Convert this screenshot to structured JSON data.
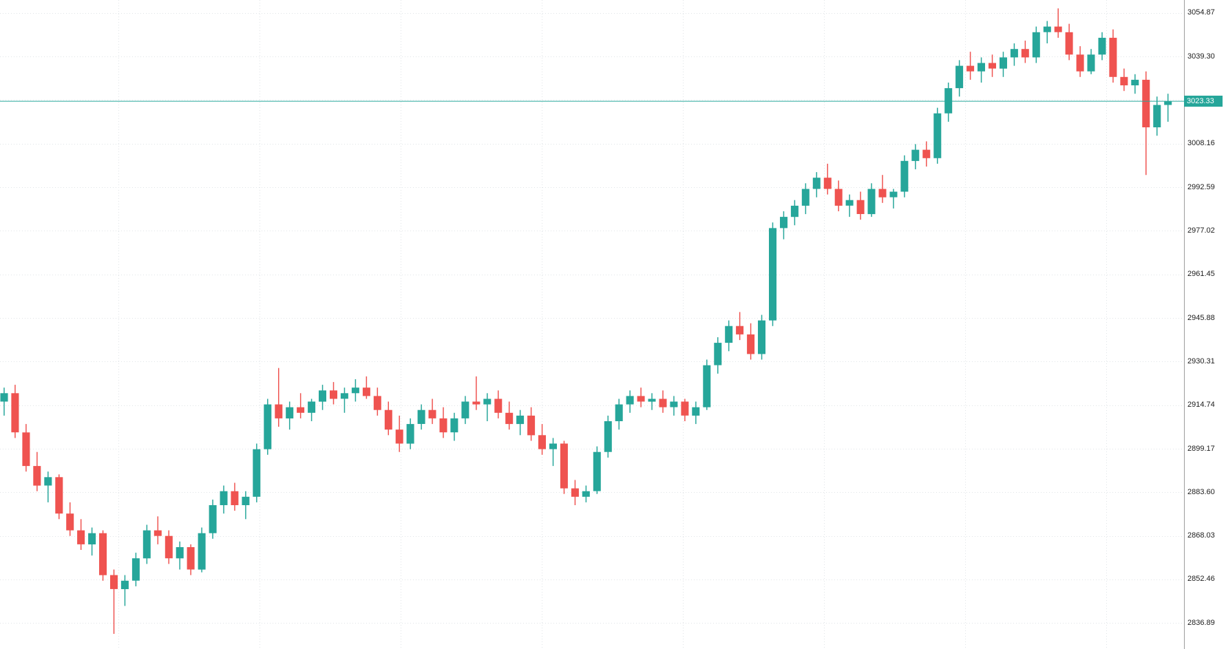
{
  "chart_data": {
    "type": "candlestick",
    "title": "",
    "current_price": 3023.33,
    "current_price_label": "3023.33",
    "y_axis": {
      "top": 3059.5,
      "bottom": 2827.6,
      "tick_step": 15.57
    },
    "axis_labels": [
      "3054.87",
      "3039.30",
      "3008.16",
      "2992.59",
      "2977.02",
      "2961.45",
      "2945.88",
      "2930.31",
      "2914.74",
      "2899.17",
      "2883.60",
      "2868.03",
      "2852.46",
      "2836.89"
    ],
    "grid_prices": [
      3054.87,
      3039.3,
      3023.73,
      3008.16,
      2992.59,
      2977.02,
      2961.45,
      2945.88,
      2930.31,
      2914.74,
      2899.17,
      2883.6,
      2868.03,
      2852.46,
      2836.89
    ],
    "colors": {
      "bull": "#26a69a",
      "bear": "#ef5350",
      "price_line": "#26a69a",
      "tag_bg": "#26a69a",
      "tag_text": "#ffffff",
      "grid": "#dfe3e6",
      "axis_text": "#1b1b1b",
      "axis_border": "#9b9b9b",
      "background": "#ffffff"
    },
    "candles": [
      [
        2916,
        2921,
        2911,
        2919
      ],
      [
        2919,
        2922,
        2903,
        2905
      ],
      [
        2905,
        2908,
        2891,
        2893
      ],
      [
        2893,
        2898,
        2884,
        2886
      ],
      [
        2886,
        2891,
        2880,
        2889
      ],
      [
        2889,
        2890,
        2874,
        2876
      ],
      [
        2876,
        2880,
        2868,
        2870
      ],
      [
        2870,
        2874,
        2863,
        2865
      ],
      [
        2865,
        2871,
        2861,
        2869
      ],
      [
        2869,
        2870,
        2852,
        2854
      ],
      [
        2854,
        2856,
        2833,
        2849
      ],
      [
        2849,
        2854,
        2843,
        2852
      ],
      [
        2852,
        2862,
        2850,
        2860
      ],
      [
        2860,
        2872,
        2858,
        2870
      ],
      [
        2870,
        2875,
        2865,
        2868
      ],
      [
        2868,
        2870,
        2858,
        2860
      ],
      [
        2860,
        2866,
        2856,
        2864
      ],
      [
        2864,
        2865,
        2854,
        2856
      ],
      [
        2856,
        2871,
        2855,
        2869
      ],
      [
        2869,
        2881,
        2867,
        2879
      ],
      [
        2879,
        2886,
        2876,
        2884
      ],
      [
        2884,
        2887,
        2877,
        2879
      ],
      [
        2879,
        2884,
        2874,
        2882
      ],
      [
        2882,
        2901,
        2880,
        2899
      ],
      [
        2899,
        2917,
        2897,
        2915
      ],
      [
        2915,
        2928,
        2907,
        2910
      ],
      [
        2910,
        2916,
        2906,
        2914
      ],
      [
        2914,
        2919,
        2910,
        2912
      ],
      [
        2912,
        2917,
        2909,
        2916
      ],
      [
        2916,
        2922,
        2913,
        2920
      ],
      [
        2920,
        2923,
        2915,
        2917
      ],
      [
        2917,
        2921,
        2912,
        2919
      ],
      [
        2919,
        2924,
        2916,
        2921
      ],
      [
        2921,
        2925,
        2917,
        2918
      ],
      [
        2918,
        2921,
        2911,
        2913
      ],
      [
        2913,
        2916,
        2904,
        2906
      ],
      [
        2906,
        2911,
        2898,
        2901
      ],
      [
        2901,
        2910,
        2899,
        2908
      ],
      [
        2908,
        2915,
        2906,
        2913
      ],
      [
        2913,
        2917,
        2908,
        2910
      ],
      [
        2910,
        2914,
        2903,
        2905
      ],
      [
        2905,
        2912,
        2902,
        2910
      ],
      [
        2910,
        2918,
        2908,
        2916
      ],
      [
        2916,
        2925,
        2913,
        2915
      ],
      [
        2915,
        2919,
        2909,
        2917
      ],
      [
        2917,
        2920,
        2910,
        2912
      ],
      [
        2912,
        2916,
        2906,
        2908
      ],
      [
        2908,
        2913,
        2904,
        2911
      ],
      [
        2911,
        2914,
        2902,
        2904
      ],
      [
        2904,
        2908,
        2897,
        2899
      ],
      [
        2899,
        2903,
        2893,
        2901
      ],
      [
        2901,
        2902,
        2883,
        2885
      ],
      [
        2885,
        2888,
        2879,
        2882
      ],
      [
        2882,
        2886,
        2880,
        2884
      ],
      [
        2884,
        2900,
        2883,
        2898
      ],
      [
        2898,
        2911,
        2896,
        2909
      ],
      [
        2909,
        2917,
        2906,
        2915
      ],
      [
        2915,
        2920,
        2912,
        2918
      ],
      [
        2918,
        2921,
        2914,
        2916
      ],
      [
        2916,
        2919,
        2913,
        2917
      ],
      [
        2917,
        2920,
        2912,
        2914
      ],
      [
        2914,
        2918,
        2911,
        2916
      ],
      [
        2916,
        2917,
        2909,
        2911
      ],
      [
        2911,
        2916,
        2908,
        2914
      ],
      [
        2914,
        2931,
        2913,
        2929
      ],
      [
        2929,
        2939,
        2926,
        2937
      ],
      [
        2937,
        2945,
        2934,
        2943
      ],
      [
        2943,
        2948,
        2938,
        2940
      ],
      [
        2940,
        2944,
        2931,
        2933
      ],
      [
        2933,
        2947,
        2931,
        2945
      ],
      [
        2945,
        2980,
        2943,
        2978
      ],
      [
        2978,
        2984,
        2974,
        2982
      ],
      [
        2982,
        2988,
        2979,
        2986
      ],
      [
        2986,
        2994,
        2983,
        2992
      ],
      [
        2992,
        2998,
        2989,
        2996
      ],
      [
        2996,
        3001,
        2990,
        2992
      ],
      [
        2992,
        2995,
        2984,
        2986
      ],
      [
        2986,
        2990,
        2982,
        2988
      ],
      [
        2988,
        2991,
        2981,
        2983
      ],
      [
        2983,
        2994,
        2982,
        2992
      ],
      [
        2992,
        2997,
        2987,
        2989
      ],
      [
        2989,
        2992,
        2985,
        2991
      ],
      [
        2991,
        3004,
        2989,
        3002
      ],
      [
        3002,
        3008,
        2999,
        3006
      ],
      [
        3006,
        3009,
        3000,
        3003
      ],
      [
        3003,
        3021,
        3001,
        3019
      ],
      [
        3019,
        3030,
        3016,
        3028
      ],
      [
        3028,
        3038,
        3025,
        3036
      ],
      [
        3036,
        3041,
        3031,
        3034
      ],
      [
        3034,
        3039,
        3030,
        3037
      ],
      [
        3037,
        3040,
        3032,
        3035
      ],
      [
        3035,
        3041,
        3032,
        3039
      ],
      [
        3039,
        3044,
        3036,
        3042
      ],
      [
        3042,
        3045,
        3037,
        3039
      ],
      [
        3039,
        3050,
        3037,
        3048
      ],
      [
        3048,
        3052,
        3044,
        3050
      ],
      [
        3050,
        3056.5,
        3046,
        3048
      ],
      [
        3048,
        3051,
        3038,
        3040
      ],
      [
        3040,
        3043,
        3032,
        3034
      ],
      [
        3034,
        3042,
        3033,
        3040
      ],
      [
        3040,
        3048,
        3038,
        3046
      ],
      [
        3046,
        3049,
        3030,
        3032
      ],
      [
        3032,
        3035,
        3027,
        3029
      ],
      [
        3029,
        3033,
        3026,
        3031
      ],
      [
        3031,
        3034,
        2997,
        3014
      ],
      [
        3014,
        3025,
        3011,
        3022
      ],
      [
        3022,
        3026,
        3016,
        3023.33
      ]
    ]
  }
}
